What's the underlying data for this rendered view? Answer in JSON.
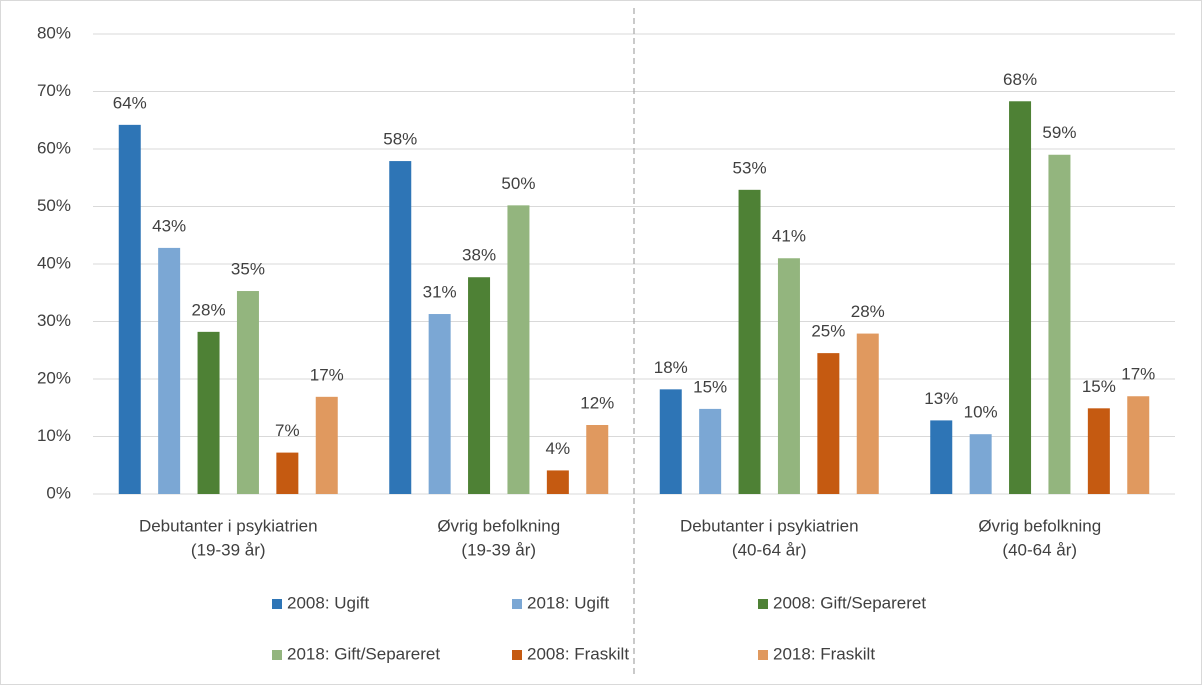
{
  "chart_data": {
    "type": "bar",
    "categories": [
      [
        "Debutanter i psykiatrien",
        "(19-39 år)"
      ],
      [
        "Øvrig befolkning",
        "(19-39 år)"
      ],
      [
        "Debutanter i psykiatrien",
        "(40-64 år)"
      ],
      [
        "Øvrig befolkning",
        "(40-64 år)"
      ]
    ],
    "series": [
      {
        "name": "2008: Ugift",
        "color": "#2e75b6",
        "values": [
          64.2,
          57.9,
          18.2,
          12.8
        ],
        "value_labels": [
          "64%",
          "58%",
          "18%",
          "13%"
        ]
      },
      {
        "name": "2018: Ugift",
        "color": "#7ba7d4",
        "values": [
          42.8,
          31.3,
          14.8,
          10.4
        ],
        "value_labels": [
          "43%",
          "31%",
          "15%",
          "10%"
        ]
      },
      {
        "name": "2008: Gift/Separeret",
        "color": "#4e8135",
        "values": [
          28.2,
          37.7,
          52.9,
          68.3
        ],
        "value_labels": [
          "28%",
          "38%",
          "53%",
          "68%"
        ]
      },
      {
        "name": "2018: Gift/Separeret",
        "color": "#93b57e",
        "values": [
          35.3,
          50.2,
          41.0,
          59.0
        ],
        "value_labels": [
          "35%",
          "50%",
          "41%",
          "59%"
        ]
      },
      {
        "name": "2008: Fraskilt",
        "color": "#c55a11",
        "values": [
          7.2,
          4.1,
          24.5,
          14.9
        ],
        "value_labels": [
          "7%",
          "4%",
          "25%",
          "15%"
        ]
      },
      {
        "name": "2018: Fraskilt",
        "color": "#e0995f",
        "values": [
          16.9,
          12.0,
          27.9,
          17.0
        ],
        "value_labels": [
          "17%",
          "12%",
          "28%",
          "17%"
        ]
      }
    ],
    "ylim": [
      0,
      80
    ],
    "yticks": [
      {
        "value": 0,
        "label": "0%"
      },
      {
        "value": 10,
        "label": "10%"
      },
      {
        "value": 20,
        "label": "20%"
      },
      {
        "value": 30,
        "label": "30%"
      },
      {
        "value": 40,
        "label": "40%"
      },
      {
        "value": 50,
        "label": "50%"
      },
      {
        "value": 60,
        "label": "60%"
      },
      {
        "value": 70,
        "label": "70%"
      },
      {
        "value": 80,
        "label": "80%"
      }
    ],
    "grid": true,
    "legend": "bottom"
  }
}
